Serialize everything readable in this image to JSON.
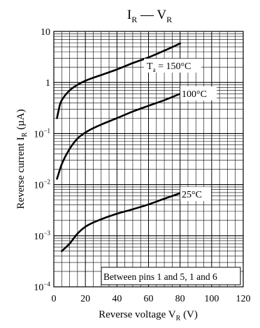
{
  "chart_data": {
    "type": "line",
    "title": {
      "main": "I",
      "main_sub": "R",
      "sep": " — ",
      "second": "V",
      "second_sub": "R"
    },
    "xlabel": {
      "text": "Reverse voltage  V",
      "sub": "R",
      "unit": "  (V)"
    },
    "ylabel": {
      "text": "Reverse current  I",
      "sub": "R",
      "unit": "  (µA)"
    },
    "xlim": [
      0,
      120
    ],
    "ylim": [
      0.0001,
      10
    ],
    "yscale": "log",
    "grid": true,
    "x_ticks": [
      "0",
      "20",
      "40",
      "60",
      "80",
      "100",
      "120"
    ],
    "y_ticks": [
      {
        "base": "10",
        "exp": "",
        "value": 10
      },
      {
        "base": "1",
        "exp": "",
        "value": 1
      },
      {
        "base": "10",
        "exp": "−1",
        "value": 0.1
      },
      {
        "base": "10",
        "exp": "−2",
        "value": 0.01
      },
      {
        "base": "10",
        "exp": "−3",
        "value": 0.001
      },
      {
        "base": "10",
        "exp": "−4",
        "value": 0.0001
      }
    ],
    "series": [
      {
        "name": "Ta = 150°C",
        "label": {
          "pre": "T",
          "sub": "a",
          "post": " = 150°C"
        },
        "x": [
          2,
          4,
          6,
          10,
          15,
          20,
          30,
          40,
          50,
          60,
          70,
          80
        ],
        "y": [
          0.2,
          0.38,
          0.5,
          0.7,
          0.9,
          1.08,
          1.4,
          1.8,
          2.4,
          3.1,
          4.2,
          5.8
        ]
      },
      {
        "name": "100°C",
        "label": {
          "pre": "100°C",
          "sub": "",
          "post": ""
        },
        "x": [
          2,
          5,
          10,
          15,
          20,
          30,
          40,
          50,
          60,
          70,
          80
        ],
        "y": [
          0.013,
          0.025,
          0.05,
          0.08,
          0.105,
          0.15,
          0.2,
          0.27,
          0.35,
          0.45,
          0.6
        ]
      },
      {
        "name": "25°C",
        "label": {
          "pre": "25°C",
          "sub": "",
          "post": ""
        },
        "x": [
          5,
          10,
          15,
          20,
          30,
          40,
          50,
          60,
          70,
          80
        ],
        "y": [
          0.0005,
          0.0007,
          0.0011,
          0.0015,
          0.0021,
          0.0027,
          0.0033,
          0.0041,
          0.0053,
          0.0068
        ]
      }
    ],
    "annotation": "Between pins 1 and 5, 1 and 6"
  }
}
